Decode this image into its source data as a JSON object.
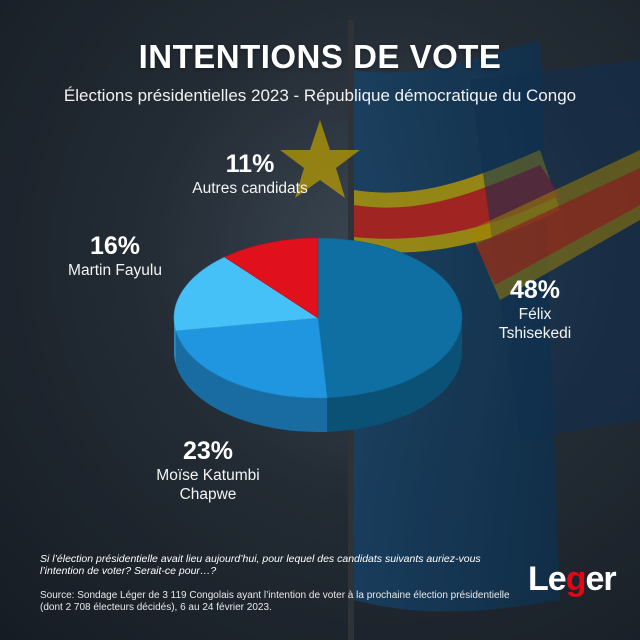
{
  "title": "INTENTIONS DE VOTE",
  "subtitle": "Élections présidentielles 2023 - République démocratique du Congo",
  "chart_data": {
    "type": "pie",
    "categories": [
      "Félix Tshisekedi",
      "Moïse Katumbi Chapwe",
      "Martin Fayulu",
      "Autres candidats"
    ],
    "values": [
      48,
      23,
      16,
      11
    ],
    "value_labels": [
      "48%",
      "23%",
      "16%",
      "11%"
    ],
    "label_lines": [
      [
        "Félix",
        "Tshisekedi"
      ],
      [
        "Moïse Katumbi",
        "Chapwe"
      ],
      [
        "Martin Fayulu"
      ],
      [
        "Autres candidats"
      ]
    ],
    "colors": [
      "#0f6fa3",
      "#2196e0",
      "#45c1f7",
      "#e0101c"
    ],
    "style": "3d",
    "legend": "none"
  },
  "question": "Si l’élection présidentielle avait lieu aujourd’hui, pour lequel des candidats suivants auriez-vous l’intention de voter? Serait-ce pour…?",
  "source": "Source: Sondage Léger de 3 119 Congolais ayant l’intention de voter à la prochaine élection présidentielle (dont 2 708 électeurs décidés), 6 au 24 février 2023.",
  "logo": {
    "part1": "Le",
    "part2": "g",
    "part3": "er"
  }
}
